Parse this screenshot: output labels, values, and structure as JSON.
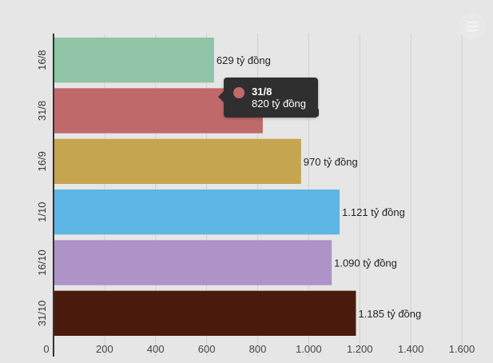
{
  "chart_data": {
    "type": "bar",
    "orientation": "horizontal",
    "categories": [
      "16/8",
      "31/8",
      "16/9",
      "1/10",
      "16/10",
      "31/10"
    ],
    "values": [
      629,
      820,
      970,
      1121,
      1090,
      1185
    ],
    "data_labels": [
      "629 tỷ đồng",
      "820 tỷ đồng",
      "970 tỷ đồng",
      "1.121 tỷ đồng",
      "1.090 tỷ đồng",
      "1.185 tỷ đồng"
    ],
    "colors": [
      "#8fc4a6",
      "#c0696a",
      "#c6a550",
      "#5db6e4",
      "#ae93c8",
      "#4a1b0c"
    ],
    "xlim": [
      0,
      1600
    ],
    "x_ticks": [
      0,
      200,
      400,
      600,
      800,
      1000,
      1200,
      1400,
      1600
    ],
    "x_tick_labels": [
      "0",
      "200",
      "400",
      "600",
      "800",
      "1.000",
      "1.200",
      "1.400",
      "1.600"
    ],
    "grid": true,
    "title": "",
    "xlabel": "",
    "ylabel": ""
  },
  "tooltip": {
    "title": "31/8",
    "value": "820 tỷ đồng",
    "color": "#c0696a"
  },
  "menu": {
    "icon": "hamburger-menu-icon"
  }
}
